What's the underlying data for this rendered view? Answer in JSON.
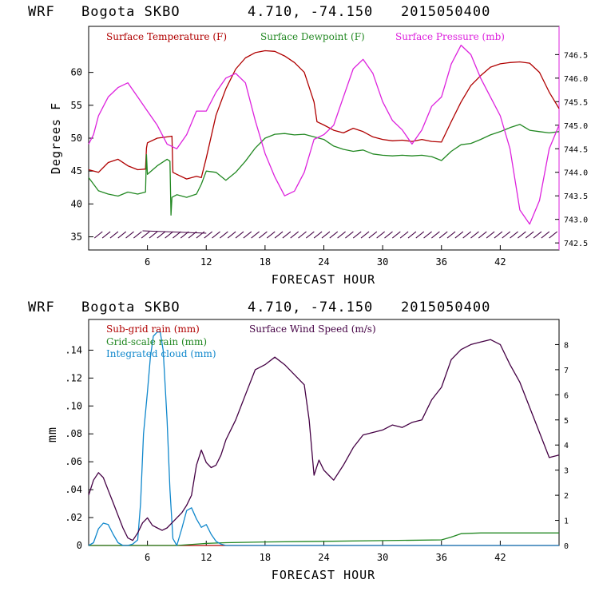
{
  "chart_data": [
    {
      "type": "line",
      "header": {
        "model": "WRF",
        "station": "Bogota SKBO",
        "coords": "4.710, -74.150",
        "run": "2015050400"
      },
      "xlabel": "FORECAST HOUR",
      "ylabel": "Degrees F",
      "xlim": [
        0,
        48
      ],
      "ylim": [
        33,
        67
      ],
      "y2lim": [
        742.35,
        747.1
      ],
      "x_ticks": [
        6,
        12,
        18,
        24,
        30,
        36,
        42
      ],
      "y_ticks": [
        35,
        40,
        45,
        50,
        55,
        60
      ],
      "y2_ticks": [
        "742.5",
        "743.0",
        "743.5",
        "744.0",
        "744.5",
        "745.0",
        "745.5",
        "746.0",
        "746.5"
      ],
      "colors": {
        "temp": "#b00000",
        "dew": "#228822",
        "pres": "#dd22dd",
        "barb": "#440044"
      },
      "series": [
        {
          "name": "Surface Temperature (F)",
          "key": "temp",
          "axis": "left",
          "x": [
            0,
            1,
            2,
            3,
            4,
            5,
            5.8,
            5.9,
            6,
            7,
            8,
            8.5,
            8.6,
            9,
            10,
            11,
            11.5,
            12,
            13,
            14,
            15,
            16,
            17,
            18,
            19,
            20,
            21,
            22,
            23,
            23.3,
            24,
            25,
            26,
            27,
            28,
            29,
            30,
            31,
            32,
            33,
            34,
            35,
            36,
            37,
            38,
            39,
            40,
            41,
            42,
            43,
            44,
            45,
            46,
            47,
            48
          ],
          "values": [
            45.2,
            44.8,
            46.3,
            46.8,
            45.8,
            45.2,
            45.3,
            48.5,
            49.3,
            50.0,
            50.2,
            50.3,
            44.8,
            44.5,
            43.8,
            44.2,
            44.0,
            47.0,
            53.5,
            57.5,
            60.5,
            62.2,
            63.0,
            63.3,
            63.2,
            62.5,
            61.5,
            60.0,
            55.5,
            52.5,
            52.0,
            51.2,
            50.8,
            51.5,
            51.0,
            50.2,
            49.8,
            49.6,
            49.7,
            49.5,
            49.8,
            49.5,
            49.4,
            52.5,
            55.5,
            58.0,
            59.5,
            60.8,
            61.3,
            61.5,
            61.6,
            61.4,
            60.0,
            57.0,
            54.5
          ]
        },
        {
          "name": "Surface Dewpoint (F)",
          "key": "dew",
          "axis": "left",
          "x": [
            0,
            1,
            2,
            3,
            4,
            5,
            5.8,
            5.9,
            6,
            7,
            8,
            8.3,
            8.4,
            8.5,
            9,
            10,
            11,
            11.5,
            12,
            13,
            14,
            15,
            16,
            17,
            18,
            19,
            20,
            21,
            22,
            23,
            24,
            25,
            26,
            27,
            28,
            29,
            30,
            31,
            32,
            33,
            34,
            35,
            36,
            37,
            38,
            39,
            40,
            41,
            42,
            43,
            44,
            45,
            46,
            47,
            48
          ],
          "values": [
            44.0,
            42.0,
            41.5,
            41.2,
            41.8,
            41.5,
            41.8,
            47.5,
            44.5,
            45.8,
            46.8,
            46.5,
            38.3,
            41.0,
            41.4,
            41.0,
            41.5,
            43.0,
            45.0,
            44.8,
            43.6,
            44.8,
            46.5,
            48.5,
            50.0,
            50.6,
            50.7,
            50.5,
            50.6,
            50.2,
            49.8,
            48.8,
            48.3,
            48.0,
            48.2,
            47.6,
            47.4,
            47.3,
            47.4,
            47.3,
            47.4,
            47.2,
            46.6,
            48.0,
            49.0,
            49.2,
            49.8,
            50.5,
            51.0,
            51.6,
            52.1,
            51.2,
            51.0,
            50.8,
            51.0
          ]
        },
        {
          "name": "Surface Pressure (mb)",
          "key": "pres",
          "axis": "right",
          "x": [
            0,
            0.5,
            1,
            2,
            3,
            4,
            5,
            6,
            7,
            8,
            9,
            10,
            11,
            12,
            13,
            14,
            15,
            16,
            17,
            18,
            19,
            20,
            21,
            22,
            23,
            24,
            25,
            26,
            27,
            28,
            29,
            30,
            31,
            32,
            33,
            34,
            35,
            36,
            37,
            38,
            39,
            40,
            41,
            42,
            43,
            44,
            45,
            46,
            47,
            48
          ],
          "values": [
            744.6,
            744.8,
            745.2,
            745.6,
            745.8,
            745.9,
            745.6,
            745.3,
            745.0,
            744.6,
            744.5,
            744.8,
            745.3,
            745.3,
            745.7,
            746.0,
            746.1,
            745.9,
            745.1,
            744.4,
            743.9,
            743.5,
            743.6,
            744.0,
            744.7,
            744.8,
            745.0,
            745.6,
            746.2,
            746.4,
            746.1,
            745.5,
            745.1,
            744.9,
            744.6,
            744.9,
            745.4,
            745.6,
            746.3,
            746.7,
            746.5,
            746.0,
            745.6,
            745.2,
            744.5,
            743.2,
            742.9,
            743.4,
            744.5,
            745.0
          ]
        }
      ],
      "wind_barbs": {
        "y": 35.3,
        "x": [
          1,
          1.8,
          2.6,
          3.4,
          4.2,
          5,
          5.8,
          6.6,
          7.4,
          8.2,
          9,
          9.8,
          10.6,
          11.4,
          12.2,
          13,
          13.8,
          14.6,
          15.4,
          16.2,
          17,
          17.8,
          18.6,
          19.4,
          20.2,
          21,
          21.8,
          22.6,
          23.4,
          24.2,
          25,
          25.8,
          26.6,
          27.4,
          28.2,
          29,
          29.8,
          30.6,
          31.4,
          32.2,
          33,
          33.8,
          34.6,
          35.4,
          36.2,
          37,
          37.8,
          38.6,
          39.4,
          40.2,
          41,
          41.8,
          42.6,
          43.4,
          44.2,
          45,
          45.8,
          46.6,
          47.4
        ]
      },
      "legend": [
        "Surface Temperature (F)",
        "Surface Dewpoint (F)",
        "Surface Pressure (mb)"
      ]
    },
    {
      "type": "line",
      "header": {
        "model": "WRF",
        "station": "Bogota SKBO",
        "coords": "4.710, -74.150",
        "run": "2015050400"
      },
      "xlabel": "FORECAST HOUR",
      "ylabel": "mm",
      "xlim": [
        0,
        48
      ],
      "ylim": [
        0,
        0.162
      ],
      "y2lim": [
        0,
        9
      ],
      "x_ticks": [
        6,
        12,
        18,
        24,
        30,
        36,
        42
      ],
      "y_ticks": [
        0,
        0.02,
        0.04,
        0.06,
        0.08,
        0.1,
        0.12,
        0.14
      ],
      "y_tick_labels": [
        "0",
        ".02",
        ".04",
        ".06",
        ".08",
        ".10",
        ".12",
        ".14"
      ],
      "y2_ticks": [
        0,
        1,
        2,
        3,
        4,
        5,
        6,
        7,
        8
      ],
      "colors": {
        "subgrid": "#b00000",
        "grid": "#228822",
        "cloud": "#1188cc",
        "wind": "#440044"
      },
      "series": [
        {
          "name": "Sub-grid rain (mm)",
          "key": "subgrid",
          "axis": "left",
          "x": [
            0,
            48
          ],
          "values": [
            0,
            0
          ]
        },
        {
          "name": "Grid-scale rain (mm)",
          "key": "grid",
          "axis": "left",
          "x": [
            0,
            9,
            10,
            12,
            14,
            18,
            24,
            30,
            36,
            37,
            38,
            40,
            48
          ],
          "values": [
            0,
            0,
            0.0005,
            0.0015,
            0.002,
            0.0025,
            0.003,
            0.0035,
            0.004,
            0.006,
            0.0085,
            0.009,
            0.009
          ]
        },
        {
          "name": "Integrated cloud (mm)",
          "key": "cloud",
          "axis": "left",
          "x": [
            0,
            0.5,
            1,
            1.5,
            2,
            2.5,
            3,
            3.5,
            4,
            4.5,
            5,
            5.3,
            5.6,
            6,
            6.3,
            6.6,
            7,
            7.3,
            7.6,
            8,
            8.3,
            8.6,
            9,
            9.5,
            10,
            10.5,
            11,
            11.5,
            12,
            12.5,
            13,
            13.5,
            14,
            14.5,
            48
          ],
          "values": [
            0,
            0.002,
            0.012,
            0.016,
            0.015,
            0.008,
            0.002,
            0,
            0,
            0.001,
            0.004,
            0.03,
            0.08,
            0.11,
            0.135,
            0.15,
            0.153,
            0.153,
            0.14,
            0.09,
            0.04,
            0.005,
            0,
            0.012,
            0.025,
            0.027,
            0.019,
            0.013,
            0.015,
            0.008,
            0.003,
            0.001,
            0,
            0,
            0
          ]
        },
        {
          "name": "Surface Wind Speed (m/s)",
          "key": "wind",
          "axis": "right",
          "x": [
            0,
            0.5,
            1,
            1.5,
            2,
            2.5,
            3,
            3.5,
            4,
            4.5,
            5,
            5.5,
            6,
            6.5,
            7,
            7.5,
            8,
            8.5,
            9,
            9.5,
            10,
            10.5,
            11,
            11.5,
            12,
            12.5,
            13,
            13.5,
            14,
            15,
            16,
            17,
            18,
            19,
            20,
            21,
            22,
            22.5,
            23,
            23.5,
            24,
            24.5,
            25,
            26,
            27,
            28,
            29,
            30,
            31,
            32,
            33,
            34,
            35,
            36,
            37,
            38,
            39,
            40,
            41,
            42,
            43,
            44,
            45,
            46,
            47,
            48
          ],
          "values": [
            2.0,
            2.6,
            2.9,
            2.7,
            2.2,
            1.7,
            1.2,
            0.7,
            0.3,
            0.2,
            0.5,
            0.9,
            1.1,
            0.8,
            0.7,
            0.6,
            0.7,
            0.9,
            1.1,
            1.3,
            1.6,
            2.0,
            3.2,
            3.8,
            3.3,
            3.1,
            3.2,
            3.6,
            4.2,
            5.0,
            6.0,
            7.0,
            7.2,
            7.5,
            7.2,
            6.8,
            6.4,
            5.0,
            2.8,
            3.4,
            3.0,
            2.8,
            2.6,
            3.2,
            3.9,
            4.4,
            4.5,
            4.6,
            4.8,
            4.7,
            4.9,
            5.0,
            5.8,
            6.3,
            7.4,
            7.8,
            8.0,
            8.1,
            8.2,
            8.0,
            7.2,
            6.5,
            5.5,
            4.5,
            3.5,
            3.6
          ]
        }
      ],
      "legend": [
        "Sub-grid rain (mm)",
        "Surface Wind Speed (m/s)",
        "Grid-scale rain (mm)",
        "Integrated cloud (mm)"
      ]
    }
  ]
}
